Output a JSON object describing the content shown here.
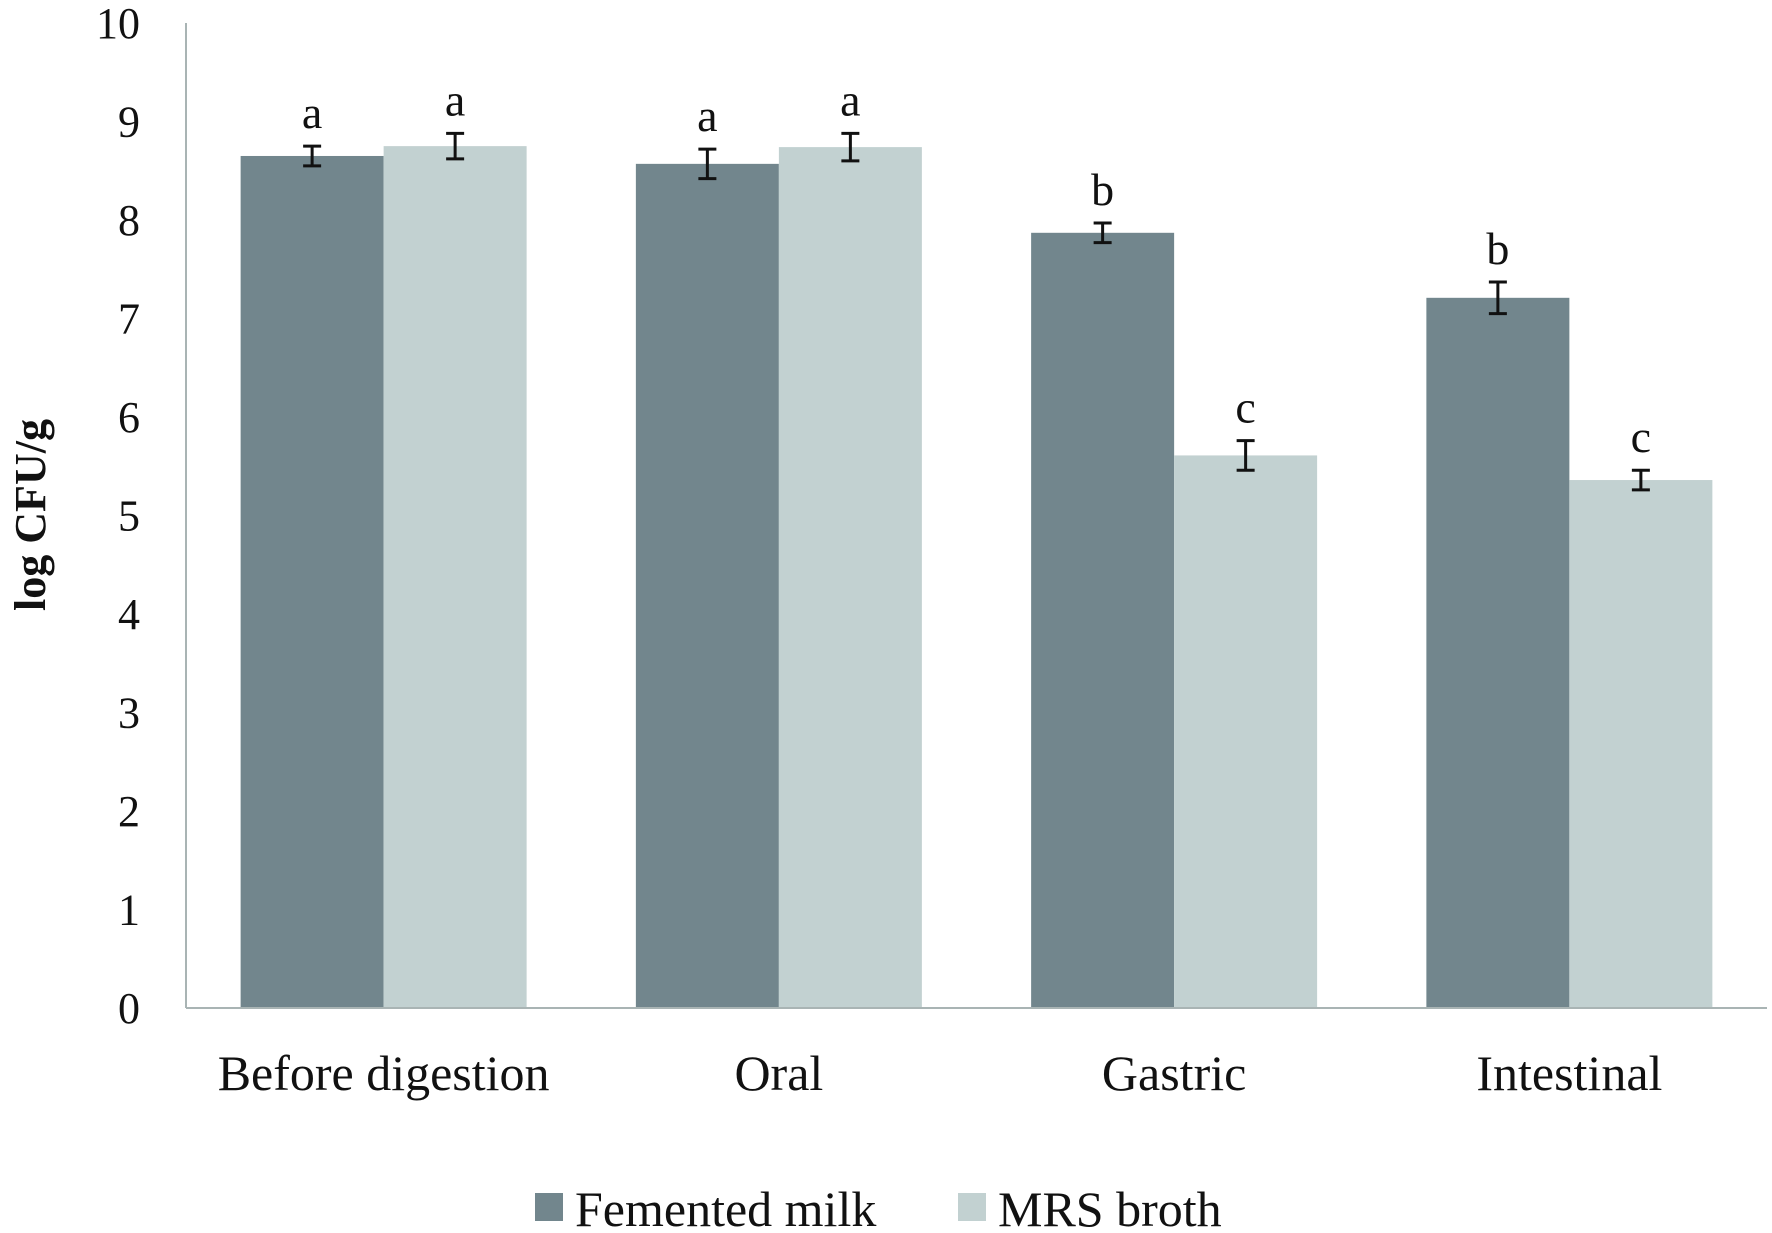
{
  "chart_data": {
    "type": "bar",
    "title": "",
    "xlabel": "",
    "ylabel": "log CFU/g",
    "ylim": [
      0,
      10
    ],
    "yticks": [
      0,
      1,
      2,
      3,
      4,
      5,
      6,
      7,
      8,
      9,
      10
    ],
    "categories": [
      "Before digestion",
      "Oral",
      "Gastric",
      "Intestinal"
    ],
    "series": [
      {
        "name": "Femented milk",
        "color": "#72868d",
        "values": [
          8.65,
          8.57,
          7.87,
          7.21
        ],
        "errors": [
          0.1,
          0.15,
          0.1,
          0.16
        ],
        "labels": [
          "a",
          "a",
          "b",
          "b"
        ]
      },
      {
        "name": "MRS broth",
        "color": "#c2d1d1",
        "values": [
          8.75,
          8.74,
          5.61,
          5.36
        ],
        "errors": [
          0.13,
          0.14,
          0.15,
          0.1
        ],
        "labels": [
          "a",
          "a",
          "c",
          "c"
        ]
      }
    ],
    "grid": false,
    "legend_position": "bottom-center"
  }
}
